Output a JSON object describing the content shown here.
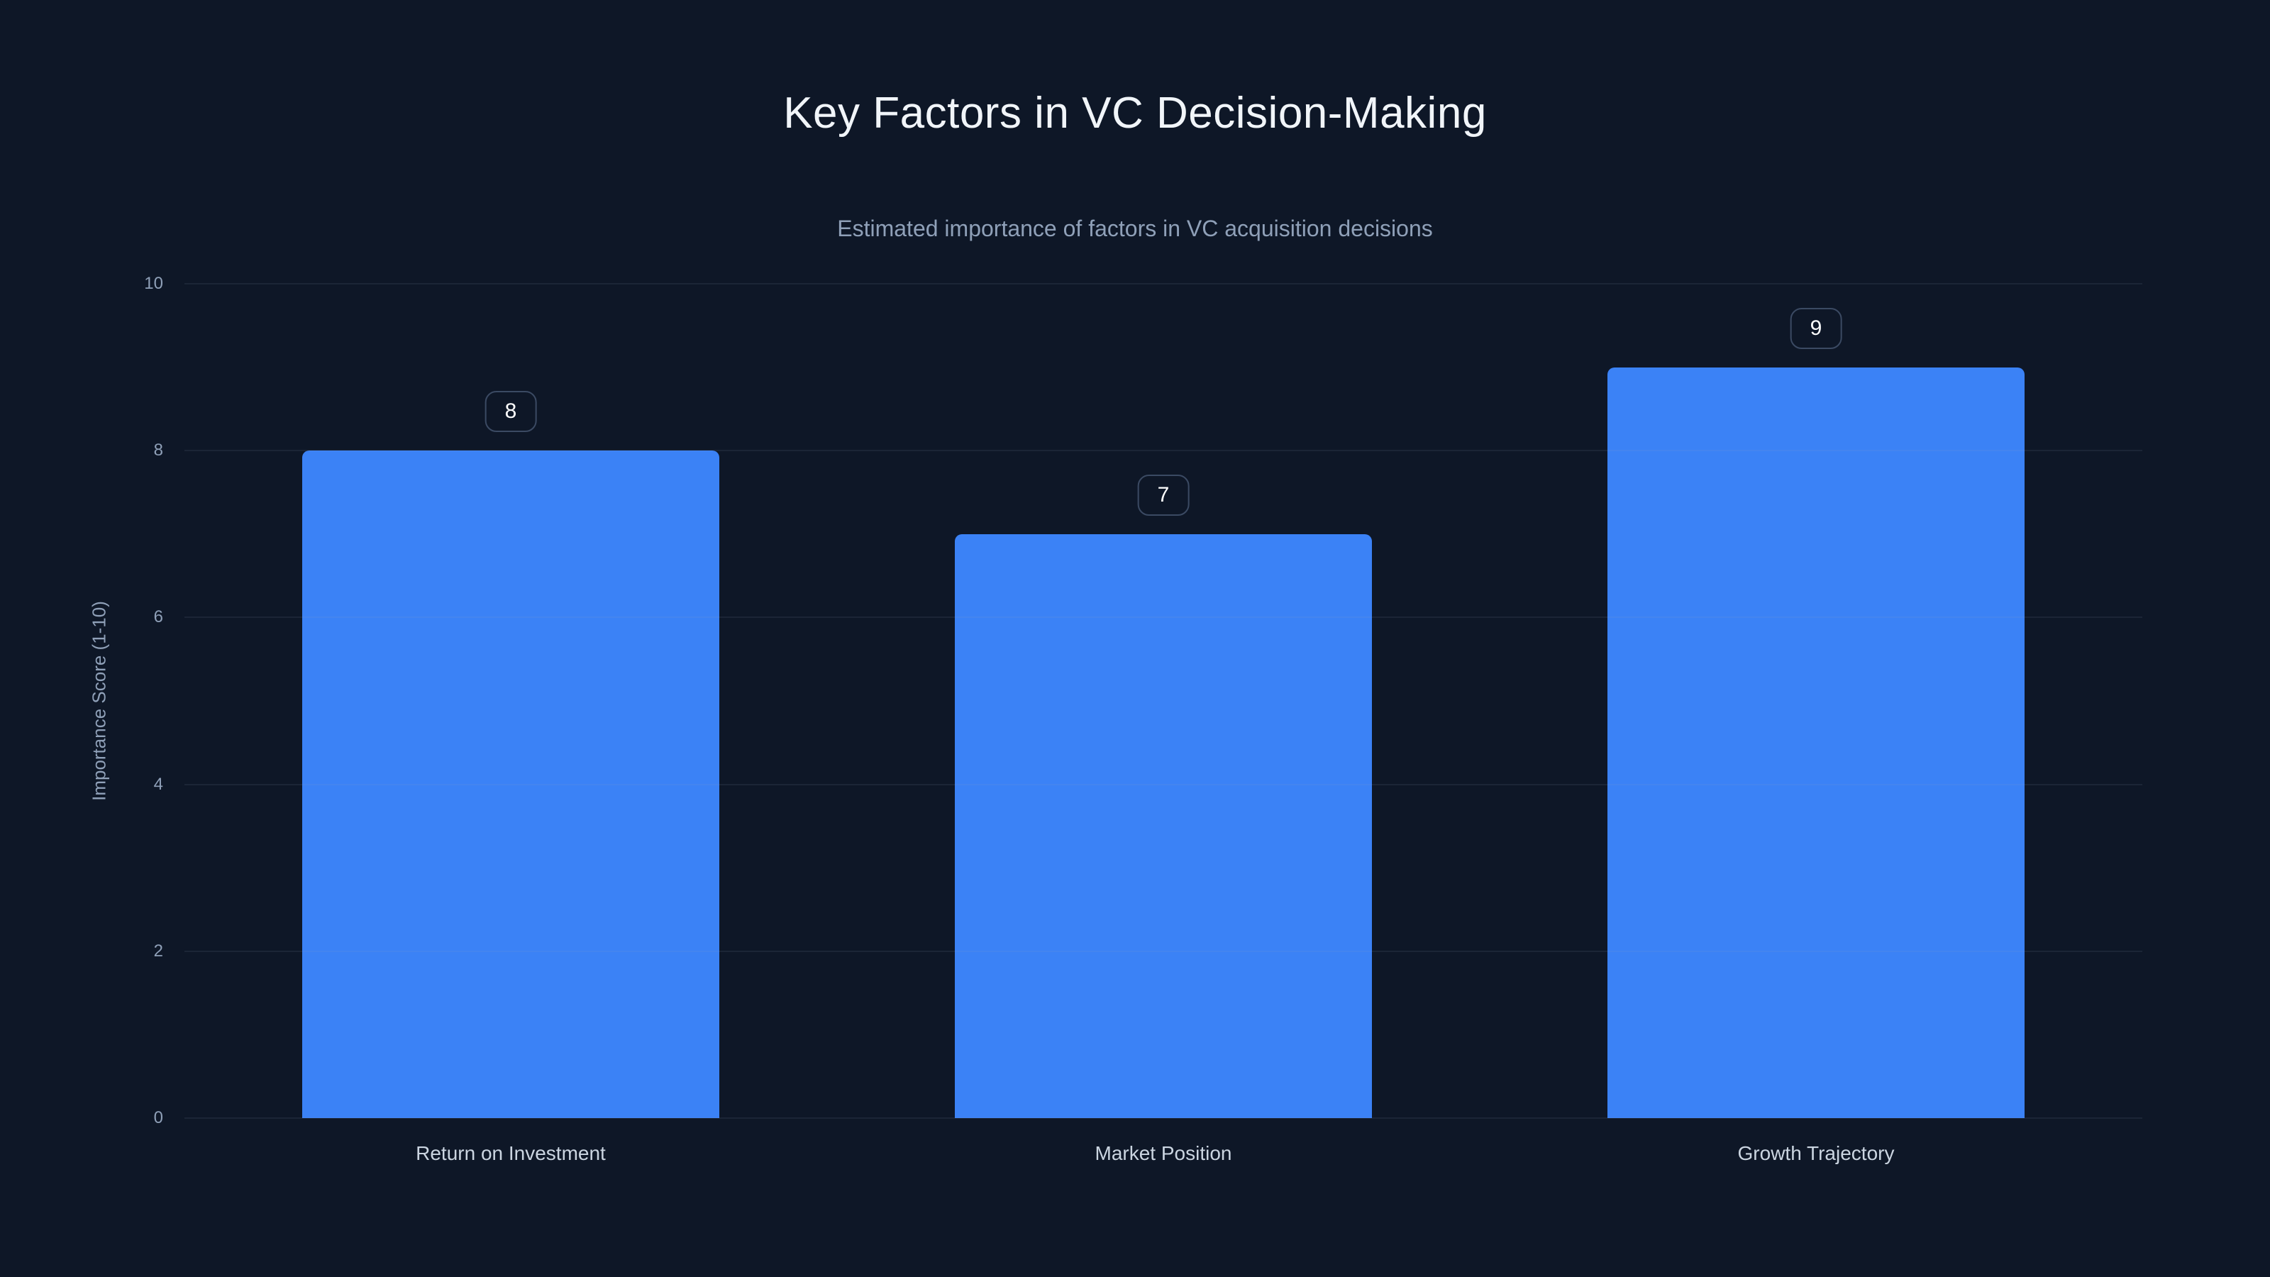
{
  "header": {
    "title": "Key Factors in VC Decision-Making",
    "subtitle": "Estimated importance of factors in VC acquisition decisions"
  },
  "chart_data": {
    "type": "bar",
    "title": "Key Factors in VC Decision-Making",
    "subtitle": "Estimated importance of factors in VC acquisition decisions",
    "categories": [
      "Return on Investment",
      "Market Position",
      "Growth Trajectory"
    ],
    "values": [
      8,
      7,
      9
    ],
    "data_labels": [
      "8",
      "7",
      "9"
    ],
    "xlabel": "",
    "ylabel": "Importance Score (1-10)",
    "ylim": [
      0,
      10
    ],
    "yticks": [
      0,
      2,
      4,
      6,
      8,
      10
    ],
    "grid": true,
    "legend": "none",
    "colors": {
      "bar": "#3b82f6",
      "background": "#0e1727",
      "gridline": "rgba(148,163,184,0.10)",
      "title_text": "#f1f5f9",
      "muted_text": "#8fa0b8",
      "category_text": "#cbd5e1",
      "badge_border": "#3b4a63"
    }
  }
}
